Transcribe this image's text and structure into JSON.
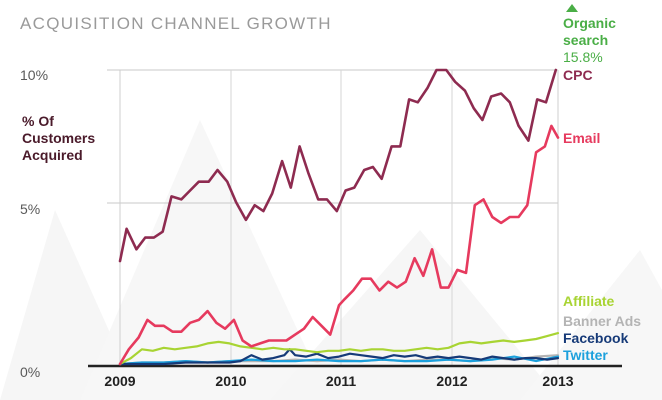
{
  "chart_data": {
    "type": "line",
    "title": "ACQUISITION CHANNEL GROWTH",
    "ylabel": [
      "% Of",
      "Customers",
      "Acquired"
    ],
    "xlabel": "",
    "x_ticks": [
      "2009",
      "2010",
      "2011",
      "2012",
      "2013"
    ],
    "y_ticks": [
      "0%",
      "5%",
      "10%"
    ],
    "ylim": [
      0,
      10
    ],
    "xlim": [
      2009,
      2013
    ],
    "grid": true,
    "legend_placement": "right, at line ends",
    "series": [
      {
        "name": "CPC",
        "color": "#8e2b50",
        "x": [
          2009.0,
          2009.06,
          2009.15,
          2009.23,
          2009.31,
          2009.39,
          2009.47,
          2009.56,
          2009.64,
          2009.72,
          2009.81,
          2009.89,
          2009.98,
          2010.06,
          2010.15,
          2010.23,
          2010.31,
          2010.39,
          2010.48,
          2010.56,
          2010.64,
          2010.72,
          2010.81,
          2010.89,
          2010.98,
          2011.06,
          2011.14,
          2011.23,
          2011.31,
          2011.39,
          2011.48,
          2011.56,
          2011.64,
          2011.72,
          2011.81,
          2011.89,
          2011.98,
          2012.06,
          2012.15,
          2012.23,
          2012.31,
          2012.39,
          2012.48,
          2012.56,
          2012.64,
          2012.73,
          2012.81,
          2012.89,
          2012.98
        ],
        "values": [
          3.5,
          4.6,
          3.9,
          4.3,
          4.3,
          4.5,
          5.7,
          5.6,
          5.9,
          6.2,
          6.2,
          6.6,
          6.2,
          5.5,
          4.9,
          5.4,
          5.2,
          5.8,
          6.9,
          6.0,
          7.4,
          6.5,
          5.6,
          5.6,
          5.2,
          5.9,
          6.0,
          6.6,
          6.7,
          6.3,
          7.4,
          7.4,
          9.0,
          8.9,
          9.4,
          10.0,
          10.0,
          9.6,
          9.3,
          8.7,
          8.3,
          9.1,
          9.2,
          8.9,
          8.1,
          7.6,
          9.0,
          8.9,
          10.0
        ]
      },
      {
        "name": "Email",
        "color": "#e63a5e",
        "x": [
          2009.0,
          2009.08,
          2009.17,
          2009.25,
          2009.32,
          2009.4,
          2009.48,
          2009.56,
          2009.64,
          2009.72,
          2009.8,
          2009.88,
          2009.96,
          2010.04,
          2010.12,
          2010.2,
          2010.28,
          2010.36,
          2010.44,
          2010.52,
          2010.6,
          2010.68,
          2010.76,
          2010.84,
          2010.92,
          2011.0,
          2011.05,
          2011.13,
          2011.21,
          2011.29,
          2011.37,
          2011.45,
          2011.53,
          2011.61,
          2011.69,
          2011.77,
          2011.85,
          2011.93,
          2012.0,
          2012.08,
          2012.16,
          2012.24,
          2012.32,
          2012.4,
          2012.48,
          2012.56,
          2012.64,
          2012.72,
          2012.8,
          2012.88,
          2012.94,
          2013.0
        ],
        "values": [
          0.0,
          0.5,
          0.9,
          1.5,
          1.3,
          1.3,
          1.1,
          1.1,
          1.4,
          1.5,
          1.8,
          1.4,
          1.2,
          1.5,
          0.8,
          0.6,
          0.7,
          0.8,
          0.8,
          0.8,
          1.0,
          1.2,
          1.6,
          1.3,
          1.0,
          2.0,
          2.2,
          2.5,
          2.9,
          2.9,
          2.5,
          2.8,
          2.6,
          2.8,
          3.6,
          3.0,
          3.9,
          2.6,
          2.6,
          3.2,
          3.1,
          5.4,
          5.6,
          5.0,
          4.8,
          5.0,
          5.0,
          5.4,
          7.2,
          7.4,
          8.1,
          7.7
        ]
      },
      {
        "name": "Affiliate",
        "color": "#a8d433",
        "x": [
          2009.0,
          2009.1,
          2009.2,
          2009.3,
          2009.4,
          2009.5,
          2009.6,
          2009.7,
          2009.8,
          2009.9,
          2010.0,
          2010.1,
          2010.2,
          2010.3,
          2010.4,
          2010.5,
          2010.6,
          2010.7,
          2010.8,
          2010.9,
          2011.0,
          2011.1,
          2011.2,
          2011.3,
          2011.4,
          2011.5,
          2011.6,
          2011.7,
          2011.8,
          2011.9,
          2012.0,
          2012.1,
          2012.2,
          2012.3,
          2012.4,
          2012.5,
          2012.6,
          2012.7,
          2012.8,
          2012.9,
          2013.0
        ],
        "values": [
          0.0,
          0.2,
          0.5,
          0.45,
          0.55,
          0.5,
          0.55,
          0.6,
          0.7,
          0.75,
          0.7,
          0.6,
          0.55,
          0.5,
          0.55,
          0.5,
          0.5,
          0.45,
          0.4,
          0.45,
          0.45,
          0.5,
          0.45,
          0.5,
          0.5,
          0.45,
          0.45,
          0.5,
          0.55,
          0.5,
          0.55,
          0.7,
          0.75,
          0.7,
          0.75,
          0.8,
          0.75,
          0.8,
          0.85,
          0.95,
          1.05
        ]
      },
      {
        "name": "Banner Ads",
        "color": "#b4b4b4",
        "x": [
          2009.0,
          2009.2,
          2009.4,
          2009.6,
          2009.8,
          2010.0,
          2010.2,
          2010.4,
          2010.6,
          2010.8,
          2011.0,
          2011.2,
          2011.4,
          2011.6,
          2011.8,
          2012.0,
          2012.2,
          2012.4,
          2012.6,
          2012.8,
          2013.0
        ],
        "values": [
          0.0,
          0.05,
          0.05,
          0.1,
          0.05,
          0.1,
          0.1,
          0.1,
          0.15,
          0.1,
          0.15,
          0.1,
          0.15,
          0.1,
          0.15,
          0.15,
          0.1,
          0.2,
          0.15,
          0.25,
          0.3
        ]
      },
      {
        "name": "Facebook",
        "color": "#163a78",
        "x": [
          2009.0,
          2009.2,
          2009.4,
          2009.6,
          2009.8,
          2010.0,
          2010.1,
          2010.2,
          2010.3,
          2010.4,
          2010.5,
          2010.55,
          2010.6,
          2010.7,
          2010.8,
          2010.9,
          2011.0,
          2011.1,
          2011.2,
          2011.3,
          2011.4,
          2011.5,
          2011.6,
          2011.7,
          2011.8,
          2011.9,
          2012.0,
          2012.1,
          2012.2,
          2012.3,
          2012.4,
          2012.5,
          2012.6,
          2012.7,
          2012.8,
          2012.9,
          2013.0
        ],
        "values": [
          0.0,
          0.0,
          0.0,
          0.05,
          0.05,
          0.05,
          0.1,
          0.3,
          0.15,
          0.2,
          0.3,
          0.5,
          0.3,
          0.25,
          0.35,
          0.2,
          0.25,
          0.35,
          0.3,
          0.25,
          0.2,
          0.3,
          0.25,
          0.3,
          0.2,
          0.25,
          0.2,
          0.25,
          0.2,
          0.15,
          0.25,
          0.2,
          0.15,
          0.2,
          0.2,
          0.15,
          0.2
        ]
      },
      {
        "name": "Twitter",
        "color": "#1ca0dc",
        "x": [
          2009.0,
          2009.2,
          2009.4,
          2009.6,
          2009.8,
          2010.0,
          2010.2,
          2010.4,
          2010.6,
          2010.8,
          2011.0,
          2011.2,
          2011.4,
          2011.6,
          2011.8,
          2012.0,
          2012.2,
          2012.4,
          2012.6,
          2012.8,
          2013.0
        ],
        "values": [
          0.0,
          0.05,
          0.05,
          0.1,
          0.05,
          0.1,
          0.15,
          0.1,
          0.1,
          0.15,
          0.1,
          0.1,
          0.15,
          0.1,
          0.1,
          0.15,
          0.1,
          0.15,
          0.25,
          0.1,
          0.25
        ]
      }
    ],
    "annotations": [
      {
        "series": "Organic search",
        "label_lines": [
          "Organic",
          "search"
        ],
        "value_text": "15.8%",
        "color": "#4aae46",
        "marker": "up-triangle"
      }
    ]
  }
}
